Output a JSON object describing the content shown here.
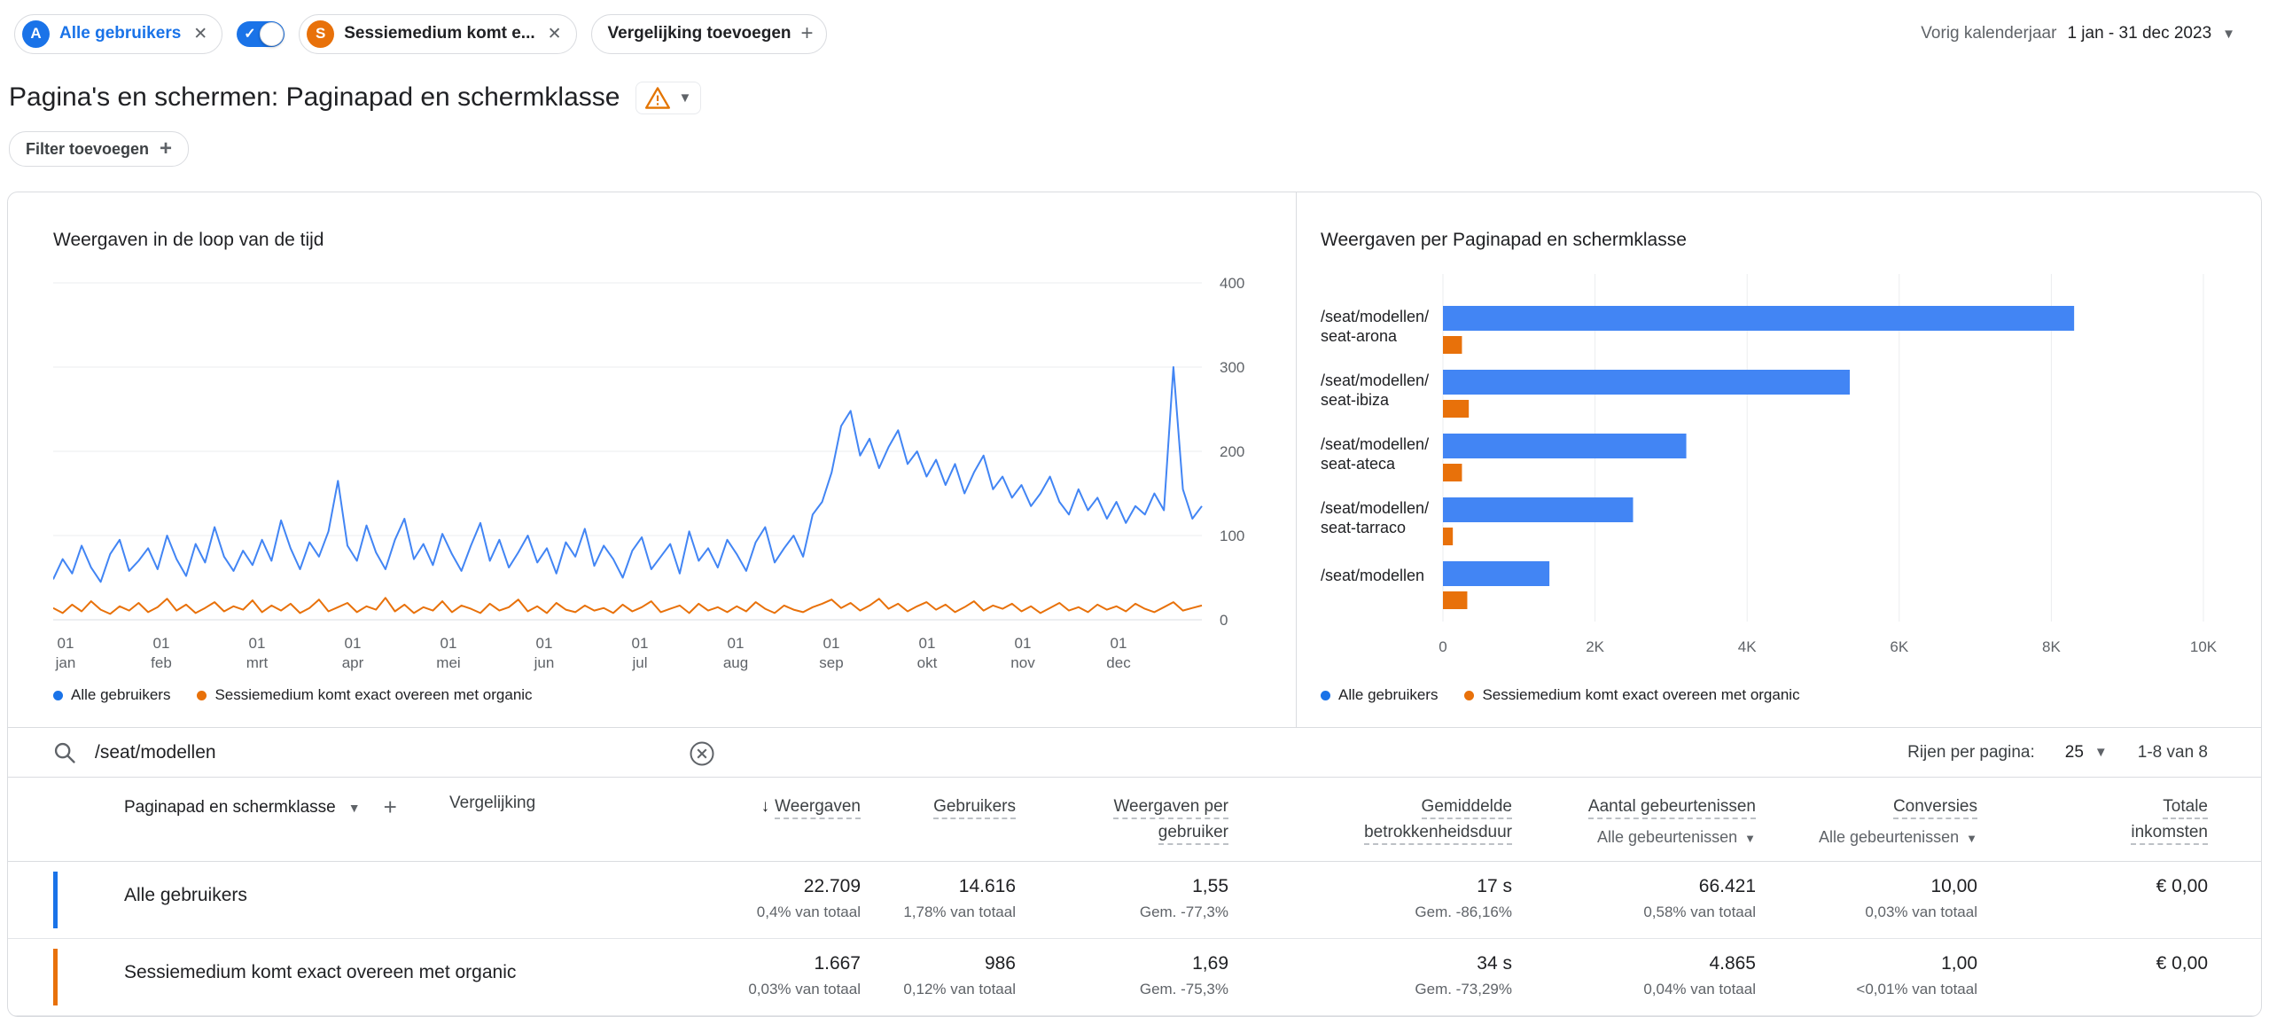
{
  "colors": {
    "blue": "#1a73e8",
    "series_blue": "#4285f4",
    "orange": "#e8710a",
    "gray_text": "#5f6368",
    "border": "#dadce0",
    "warning": "#e37400"
  },
  "topbar": {
    "chip_all_users": {
      "avatar": "A",
      "label": "Alle gebruikers"
    },
    "chip_comparison": {
      "avatar": "S",
      "label": "Sessiemedium komt e..."
    },
    "add_comparison_label": "Vergelijking toevoegen",
    "date_preset": "Vorig kalenderjaar",
    "date_range": "1 jan - 31 dec 2023"
  },
  "page": {
    "title": "Pagina's en schermen: Paginapad en schermklasse",
    "filter_label": "Filter toevoegen"
  },
  "chart_data": [
    {
      "type": "line",
      "title": "Weergaven in de loop van de tijd",
      "ylabel": "Weergaven",
      "ylim": [
        0,
        400
      ],
      "yticks": [
        0,
        100,
        200,
        300,
        400
      ],
      "x_tick_prefix": "01",
      "months": [
        "jan",
        "feb",
        "mrt",
        "apr",
        "mei",
        "jun",
        "jul",
        "aug",
        "sep",
        "okt",
        "nov",
        "dec"
      ],
      "legend_position": "bottom",
      "grid": true,
      "series": [
        {
          "name": "Alle gebruikers",
          "color": "#4285f4",
          "values": [
            48,
            72,
            55,
            88,
            62,
            45,
            78,
            95,
            58,
            70,
            85,
            60,
            100,
            72,
            52,
            90,
            68,
            110,
            75,
            58,
            82,
            65,
            95,
            70,
            118,
            85,
            60,
            92,
            75,
            105,
            165,
            88,
            70,
            112,
            80,
            60,
            95,
            120,
            72,
            90,
            65,
            102,
            78,
            58,
            88,
            115,
            70,
            95,
            62,
            80,
            100,
            68,
            85,
            55,
            92,
            75,
            108,
            64,
            88,
            72,
            50,
            82,
            98,
            60,
            75,
            90,
            55,
            105,
            70,
            85,
            62,
            95,
            78,
            58,
            92,
            110,
            68,
            85,
            100,
            75,
            125,
            140,
            175,
            230,
            248,
            195,
            215,
            180,
            205,
            225,
            185,
            200,
            170,
            190,
            160,
            185,
            150,
            175,
            195,
            155,
            170,
            145,
            160,
            135,
            150,
            170,
            140,
            125,
            155,
            130,
            145,
            120,
            140,
            115,
            135,
            125,
            150,
            130,
            300,
            155,
            120,
            135
          ]
        },
        {
          "name": "Sessiemedium komt exact overeen met organic",
          "color": "#e8710a",
          "values": [
            14,
            8,
            18,
            10,
            22,
            12,
            7,
            16,
            11,
            20,
            9,
            15,
            25,
            11,
            18,
            8,
            14,
            21,
            10,
            16,
            12,
            23,
            9,
            17,
            11,
            19,
            8,
            14,
            24,
            10,
            15,
            20,
            9,
            16,
            12,
            26,
            10,
            18,
            8,
            15,
            11,
            22,
            9,
            17,
            13,
            8,
            19,
            11,
            15,
            24,
            10,
            16,
            8,
            20,
            12,
            9,
            17,
            11,
            14,
            8,
            18,
            10,
            15,
            22,
            9,
            13,
            17,
            8,
            19,
            11,
            15,
            9,
            16,
            10,
            21,
            13,
            8,
            17,
            12,
            9,
            15,
            19,
            24,
            14,
            20,
            11,
            17,
            25,
            13,
            19,
            10,
            16,
            21,
            12,
            18,
            9,
            15,
            22,
            11,
            17,
            13,
            19,
            10,
            16,
            8,
            14,
            20,
            11,
            15,
            9,
            18,
            12,
            16,
            10,
            19,
            13,
            9,
            15,
            21,
            11,
            14,
            17
          ]
        }
      ]
    },
    {
      "type": "bar",
      "orientation": "horizontal",
      "title": "Weergaven per Paginapad en schermklasse",
      "categories": [
        "/seat/modellen/seat-arona",
        "/seat/modellen/seat-ibiza",
        "/seat/modellen/seat-ateca",
        "/seat/modellen/seat-tarraco",
        "/seat/modellen"
      ],
      "categories_lines": [
        [
          "/seat/modellen/",
          "seat-arona"
        ],
        [
          "/seat/modellen/",
          "seat-ibiza"
        ],
        [
          "/seat/modellen/",
          "seat-ateca"
        ],
        [
          "/seat/modellen/",
          "seat-tarraco"
        ],
        [
          "/seat/modellen"
        ]
      ],
      "xlim": [
        0,
        10000
      ],
      "xticks": [
        "0",
        "2K",
        "4K",
        "6K",
        "8K",
        "10K"
      ],
      "grid": true,
      "legend_position": "bottom",
      "series": [
        {
          "name": "Alle gebruikers",
          "color": "#4285f4",
          "values": [
            8300,
            5350,
            3200,
            2500,
            1400
          ]
        },
        {
          "name": "Sessiemedium komt exact overeen met organic",
          "color": "#e8710a",
          "values": [
            250,
            340,
            250,
            130,
            320
          ]
        }
      ]
    }
  ],
  "search": {
    "value": "/seat/modellen",
    "rows_per_page_label": "Rijen per pagina:",
    "rows_per_page_value": "25",
    "range_label": "1-8 van 8"
  },
  "table": {
    "dimension_header": "Paginapad en schermklasse",
    "comparison_header": "Vergelijking",
    "columns": [
      {
        "label": "Weergaven",
        "sorted": "desc"
      },
      {
        "label": "Gebruikers"
      },
      {
        "label": "Weergaven per gebruiker"
      },
      {
        "label": "Gemiddelde betrokkenheidsduur"
      },
      {
        "label": "Aantal gebeurtenissen",
        "sub": "Alle gebeurtenissen"
      },
      {
        "label": "Conversies",
        "sub": "Alle gebeurtenissen"
      },
      {
        "label": "Totale inkomsten"
      }
    ],
    "rows": [
      {
        "comparison": "Alle gebruikers",
        "marker": "#1a73e8",
        "views": {
          "v": "22.709",
          "s": "0,4% van totaal"
        },
        "users": {
          "v": "14.616",
          "s": "1,78% van totaal"
        },
        "views_per_user": {
          "v": "1,55",
          "s": "Gem. -77,3%"
        },
        "engagement": {
          "v": "17 s",
          "s": "Gem. -86,16%"
        },
        "events": {
          "v": "66.421",
          "s": "0,58% van totaal"
        },
        "conversions": {
          "v": "10,00",
          "s": "0,03% van totaal"
        },
        "revenue": {
          "v": "€ 0,00"
        }
      },
      {
        "comparison": "Sessiemedium komt exact overeen met organic",
        "marker": "#e8710a",
        "views": {
          "v": "1.667",
          "s": "0,03% van totaal"
        },
        "users": {
          "v": "986",
          "s": "0,12% van totaal"
        },
        "views_per_user": {
          "v": "1,69",
          "s": "Gem. -75,3%"
        },
        "engagement": {
          "v": "34 s",
          "s": "Gem. -73,29%"
        },
        "events": {
          "v": "4.865",
          "s": "0,04% van totaal"
        },
        "conversions": {
          "v": "1,00",
          "s": "<0,01% van totaal"
        },
        "revenue": {
          "v": "€ 0,00"
        }
      }
    ]
  }
}
